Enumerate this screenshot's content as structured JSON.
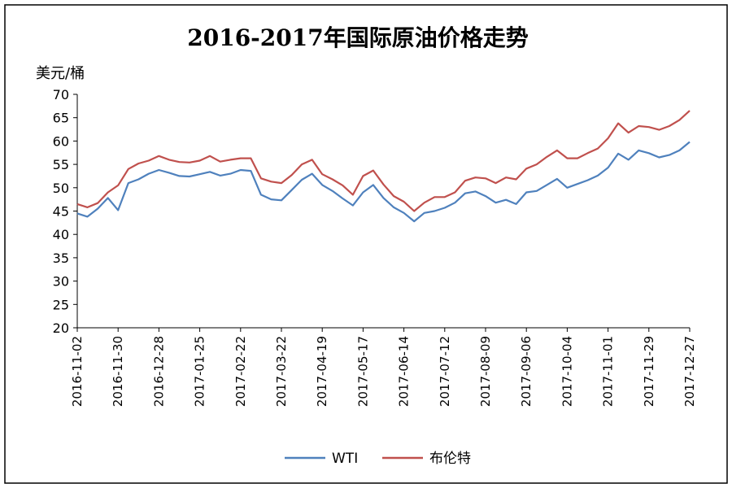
{
  "chart_data": {
    "type": "line",
    "title": "2016-2017年国际原油价格走势",
    "ylabel": "美元/桶",
    "xlabel": "",
    "ylim": [
      20,
      70
    ],
    "yticks": [
      20,
      25,
      30,
      35,
      40,
      45,
      50,
      55,
      60,
      65,
      70
    ],
    "grid": false,
    "legend": "bottom",
    "x_ticks": [
      "2016-11-02",
      "2016-11-30",
      "2016-12-28",
      "2017-01-25",
      "2017-02-22",
      "2017-03-22",
      "2017-04-19",
      "2017-05-17",
      "2017-06-14",
      "2017-07-12",
      "2017-08-09",
      "2017-09-06",
      "2017-10-04",
      "2017-11-01",
      "2017-11-29",
      "2017-12-27"
    ],
    "x": [
      "2016-11-02",
      "2016-11-09",
      "2016-11-16",
      "2016-11-23",
      "2016-11-30",
      "2016-12-07",
      "2016-12-14",
      "2016-12-21",
      "2016-12-28",
      "2017-01-04",
      "2017-01-11",
      "2017-01-18",
      "2017-01-25",
      "2017-02-01",
      "2017-02-08",
      "2017-02-15",
      "2017-02-22",
      "2017-03-01",
      "2017-03-08",
      "2017-03-15",
      "2017-03-22",
      "2017-03-29",
      "2017-04-05",
      "2017-04-12",
      "2017-04-19",
      "2017-04-26",
      "2017-05-03",
      "2017-05-10",
      "2017-05-17",
      "2017-05-24",
      "2017-05-31",
      "2017-06-07",
      "2017-06-14",
      "2017-06-21",
      "2017-06-28",
      "2017-07-05",
      "2017-07-12",
      "2017-07-19",
      "2017-07-26",
      "2017-08-02",
      "2017-08-09",
      "2017-08-16",
      "2017-08-23",
      "2017-08-30",
      "2017-09-06",
      "2017-09-13",
      "2017-09-20",
      "2017-09-27",
      "2017-10-04",
      "2017-10-11",
      "2017-10-18",
      "2017-10-25",
      "2017-11-01",
      "2017-11-08",
      "2017-11-15",
      "2017-11-22",
      "2017-11-29",
      "2017-12-06",
      "2017-12-13",
      "2017-12-20",
      "2017-12-27"
    ],
    "series": [
      {
        "name": "WTI",
        "color": "#4f81bd",
        "values": [
          44.5,
          43.8,
          45.5,
          47.8,
          45.2,
          51.0,
          51.8,
          53.0,
          53.8,
          53.2,
          52.5,
          52.4,
          52.9,
          53.4,
          52.6,
          53.0,
          53.8,
          53.6,
          48.5,
          47.5,
          47.3,
          49.5,
          51.7,
          53.0,
          50.6,
          49.3,
          47.7,
          46.2,
          49.0,
          50.6,
          47.8,
          45.8,
          44.6,
          42.8,
          44.6,
          45.0,
          45.7,
          46.8,
          48.8,
          49.2,
          48.2,
          46.8,
          47.4,
          46.5,
          49.0,
          49.3,
          50.6,
          51.9,
          50.0,
          50.8,
          51.6,
          52.6,
          54.3,
          57.3,
          56.0,
          58.0,
          57.4,
          56.5,
          57.0,
          58.0,
          59.8
        ]
      },
      {
        "name": "布伦特",
        "color": "#c0504d",
        "values": [
          46.5,
          45.8,
          46.7,
          49.0,
          50.5,
          54.0,
          55.2,
          55.8,
          56.8,
          56.0,
          55.5,
          55.4,
          55.8,
          56.8,
          55.6,
          56.0,
          56.3,
          56.3,
          52.0,
          51.3,
          51.0,
          52.7,
          55.0,
          56.0,
          52.9,
          51.8,
          50.5,
          48.5,
          52.5,
          53.7,
          50.7,
          48.2,
          47.0,
          45.0,
          46.8,
          48.0,
          48.0,
          49.0,
          51.5,
          52.2,
          52.0,
          51.0,
          52.2,
          51.8,
          54.1,
          55.0,
          56.6,
          58.0,
          56.3,
          56.3,
          57.4,
          58.4,
          60.6,
          63.8,
          61.8,
          63.2,
          63.0,
          62.4,
          63.2,
          64.5,
          66.5
        ]
      }
    ]
  }
}
